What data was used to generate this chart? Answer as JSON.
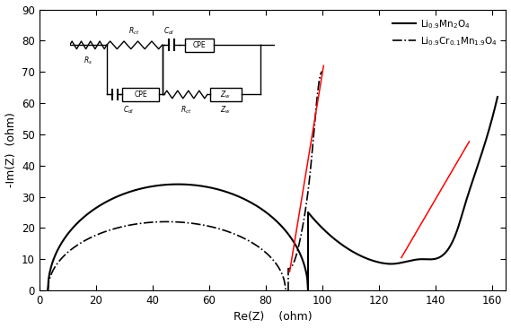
{
  "xlabel": "Re(Z)    (ohm)",
  "ylabel": "-Im(Z)  (ohm)",
  "xlim": [
    0,
    165
  ],
  "ylim": [
    0,
    90
  ],
  "xticks": [
    0,
    20,
    40,
    60,
    80,
    100,
    120,
    140,
    160
  ],
  "yticks": [
    0,
    10,
    20,
    30,
    40,
    50,
    60,
    70,
    80,
    90
  ],
  "legend1_label": "$\\mathrm{Li_{0.9}Mn_2O_4}$",
  "legend2_label": "$\\mathrm{Li_{0.9}Cr_{0.1}Mn_{1.9}O_4}$",
  "figsize": [
    5.69,
    3.66
  ],
  "dpi": 100
}
